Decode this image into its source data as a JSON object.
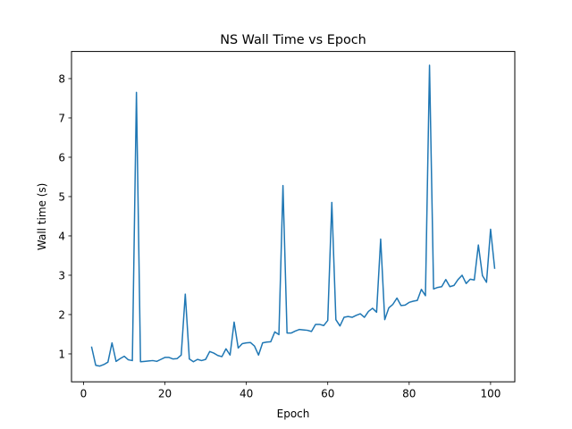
{
  "chart_data": {
    "type": "line",
    "title": "NS Wall Time vs Epoch",
    "xlabel": "Epoch",
    "ylabel": "Wall time (s)",
    "xlim": [
      -2.95,
      105.95
    ],
    "ylim": [
      0.29,
      8.69
    ],
    "xticks": [
      0,
      20,
      40,
      60,
      80,
      100
    ],
    "yticks": [
      1,
      2,
      3,
      4,
      5,
      6,
      7,
      8
    ],
    "grid": false,
    "legend": null,
    "colors": {
      "series": "#1f77b4",
      "axes": "#000000",
      "background": "#ffffff"
    },
    "series": [
      {
        "x": [
          2,
          3,
          4,
          5,
          6,
          7,
          8,
          9,
          10,
          11,
          12,
          13,
          14,
          15,
          16,
          17,
          18,
          19,
          20,
          21,
          22,
          23,
          24,
          25,
          26,
          27,
          28,
          29,
          30,
          31,
          32,
          33,
          34,
          35,
          36,
          37,
          38,
          39,
          40,
          41,
          42,
          43,
          44,
          45,
          46,
          47,
          48,
          49,
          50,
          51,
          52,
          53,
          54,
          55,
          56,
          57,
          58,
          59,
          60,
          61,
          62,
          63,
          64,
          65,
          66,
          67,
          68,
          69,
          70,
          71,
          72,
          73,
          74,
          75,
          76,
          77,
          78,
          79,
          80,
          81,
          82,
          83,
          84,
          85,
          86,
          87,
          88,
          89,
          90,
          91,
          92,
          93,
          94,
          95,
          96,
          97,
          98,
          99,
          100,
          101
        ],
        "y": [
          1.17,
          0.71,
          0.69,
          0.73,
          0.79,
          1.28,
          0.81,
          0.88,
          0.94,
          0.85,
          0.83,
          7.65,
          0.8,
          0.81,
          0.82,
          0.83,
          0.81,
          0.86,
          0.91,
          0.91,
          0.87,
          0.88,
          0.97,
          2.52,
          0.87,
          0.8,
          0.86,
          0.83,
          0.86,
          1.06,
          1.02,
          0.96,
          0.93,
          1.13,
          0.97,
          1.81,
          1.15,
          1.26,
          1.28,
          1.29,
          1.2,
          0.97,
          1.28,
          1.3,
          1.31,
          1.56,
          1.49,
          5.28,
          1.53,
          1.53,
          1.58,
          1.62,
          1.61,
          1.6,
          1.57,
          1.75,
          1.75,
          1.72,
          1.85,
          4.85,
          1.87,
          1.71,
          1.93,
          1.95,
          1.93,
          1.98,
          2.02,
          1.93,
          2.08,
          2.16,
          2.06,
          3.92,
          1.87,
          2.17,
          2.26,
          2.42,
          2.23,
          2.24,
          2.31,
          2.34,
          2.36,
          2.64,
          2.48,
          8.34,
          2.65,
          2.69,
          2.71,
          2.89,
          2.71,
          2.74,
          2.89,
          3.0,
          2.79,
          2.9,
          2.88,
          3.77,
          2.99,
          2.82,
          4.17,
          3.18
        ]
      }
    ]
  }
}
